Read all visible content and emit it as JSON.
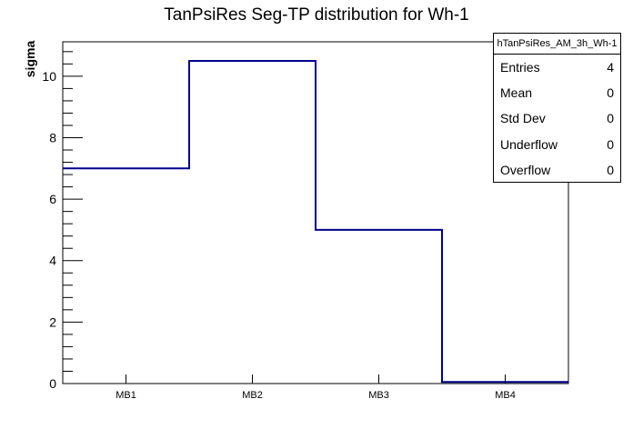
{
  "chart_data": {
    "type": "bar",
    "subtype": "root-step-histogram",
    "title": "TanPsiRes Seg-TP distribution for Wh-1",
    "xlabel": "",
    "ylabel": "sigma",
    "categories": [
      "MB1",
      "MB2",
      "MB3",
      "MB4"
    ],
    "values": [
      7,
      10.5,
      5,
      0.05
    ],
    "ylim": [
      0,
      11.12
    ],
    "yticks": [
      0,
      2,
      4,
      6,
      8,
      10
    ],
    "minor_tick_step": 0.4,
    "grid": "off",
    "legend_position": "none",
    "line_color": "#00008c",
    "frame_color": "#000000",
    "background_color": "#ffffff"
  },
  "stats_box": {
    "header": "hTanPsiRes_AM_3h_Wh-1",
    "rows": [
      {
        "label": "Entries",
        "value": "4"
      },
      {
        "label": "Mean",
        "value": "0"
      },
      {
        "label": "Std Dev",
        "value": "0"
      },
      {
        "label": "Underflow",
        "value": "0"
      },
      {
        "label": "Overflow",
        "value": "0"
      }
    ]
  }
}
